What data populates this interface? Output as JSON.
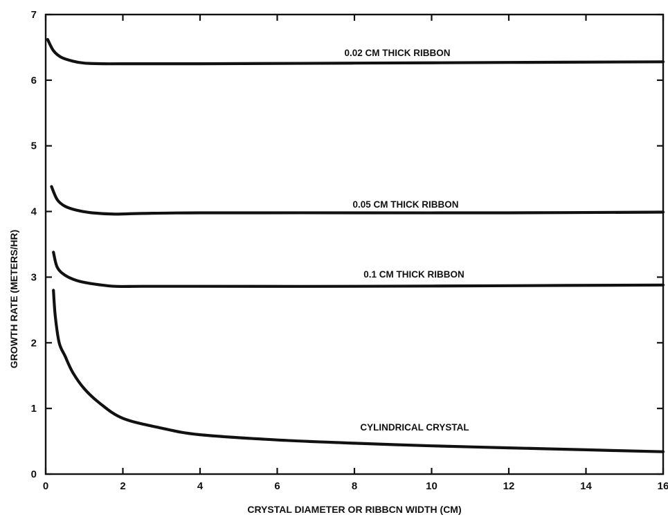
{
  "chart_data": {
    "type": "line",
    "xlabel": "CRYSTAL DIAMETER OR RIBBCN WIDTH (CM)",
    "ylabel": "GROWTH RATE (METERS/HR)",
    "xlim": [
      0,
      16
    ],
    "ylim": [
      0,
      7
    ],
    "x_ticks": [
      0,
      2,
      4,
      6,
      8,
      10,
      12,
      14,
      16
    ],
    "y_ticks": [
      0,
      1,
      2,
      3,
      4,
      5,
      6,
      7
    ],
    "grid": false,
    "series": [
      {
        "name": "0.02 CM THICK RIBBON",
        "x": [
          0.05,
          0.2,
          0.4,
          0.7,
          1.0,
          1.5,
          2,
          4,
          8,
          12,
          16
        ],
        "y": [
          6.62,
          6.45,
          6.35,
          6.29,
          6.26,
          6.25,
          6.25,
          6.25,
          6.26,
          6.27,
          6.28
        ]
      },
      {
        "name": "0.05 CM THICK RIBBON",
        "x": [
          0.15,
          0.3,
          0.5,
          0.8,
          1.2,
          1.8,
          2.5,
          4,
          8,
          12,
          16
        ],
        "y": [
          4.38,
          4.18,
          4.08,
          4.02,
          3.98,
          3.96,
          3.97,
          3.98,
          3.98,
          3.98,
          3.99
        ]
      },
      {
        "name": "0.1 CM THICK RIBBON",
        "x": [
          0.2,
          0.3,
          0.5,
          0.8,
          1.2,
          1.8,
          2.5,
          4,
          8,
          12,
          16
        ],
        "y": [
          3.38,
          3.15,
          3.03,
          2.95,
          2.9,
          2.86,
          2.86,
          2.86,
          2.86,
          2.87,
          2.88
        ]
      },
      {
        "name": "CYLINDRICAL CRYSTAL",
        "x": [
          0.2,
          0.25,
          0.35,
          0.5,
          0.7,
          1.0,
          1.4,
          2.0,
          3.0,
          4.0,
          6.0,
          8.0,
          10.0,
          12.0,
          14.0,
          16.0
        ],
        "y": [
          2.8,
          2.4,
          2.0,
          1.8,
          1.55,
          1.3,
          1.08,
          0.85,
          0.7,
          0.6,
          0.52,
          0.47,
          0.43,
          0.4,
          0.37,
          0.34
        ]
      }
    ]
  }
}
